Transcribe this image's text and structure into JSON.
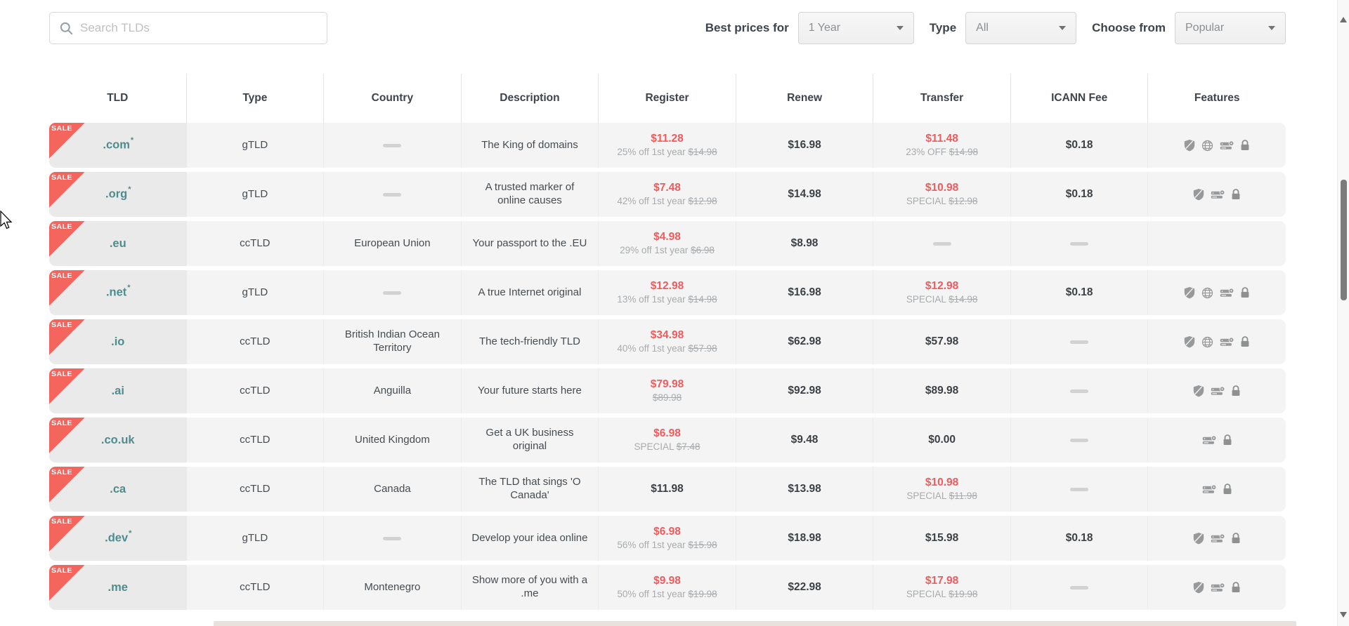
{
  "toolbar": {
    "search_placeholder": "Search TLDs",
    "best_prices_label": "Best prices for",
    "best_prices_value": "1 Year",
    "type_label": "Type",
    "type_value": "All",
    "choose_label": "Choose from",
    "choose_value": "Popular"
  },
  "colors": {
    "sale_badge": "#f4655e",
    "tld_teal": "#4e8c8e",
    "price_red": "#f25b5c",
    "row_bg": "#f4f4f4",
    "tld_cell_bg": "#eaeaea"
  },
  "table": {
    "headers": [
      "TLD",
      "Type",
      "Country",
      "Description",
      "Register",
      "Renew",
      "Transfer",
      "ICANN Fee",
      "Features"
    ],
    "sale_badge_label": "SALE",
    "rows": [
      {
        "tld": ".com",
        "asterisk": true,
        "sale": true,
        "type": "gTLD",
        "country": null,
        "description": "The King of domains",
        "register": {
          "price": "$11.28",
          "red": true,
          "note": "25% off 1st year",
          "strike": "$14.98"
        },
        "renew": "$16.98",
        "transfer": {
          "price": "$11.48",
          "red": true,
          "note": "23% OFF",
          "strike": "$14.98"
        },
        "icann": "$0.18",
        "features": [
          "shield",
          "globe",
          "server",
          "lock"
        ]
      },
      {
        "tld": ".org",
        "asterisk": true,
        "sale": true,
        "type": "gTLD",
        "country": null,
        "description": "A trusted marker of online causes",
        "register": {
          "price": "$7.48",
          "red": true,
          "note": "42% off 1st year",
          "strike": "$12.98"
        },
        "renew": "$14.98",
        "transfer": {
          "price": "$10.98",
          "red": true,
          "note": "SPECIAL",
          "strike": "$12.98"
        },
        "icann": "$0.18",
        "features": [
          "shield",
          "server",
          "lock"
        ]
      },
      {
        "tld": ".eu",
        "asterisk": false,
        "sale": true,
        "type": "ccTLD",
        "country": "European Union",
        "description": "Your passport to the .EU",
        "register": {
          "price": "$4.98",
          "red": true,
          "note": "29% off 1st year",
          "strike": "$6.98"
        },
        "renew": "$8.98",
        "transfer": null,
        "icann": null,
        "features": []
      },
      {
        "tld": ".net",
        "asterisk": true,
        "sale": true,
        "type": "gTLD",
        "country": null,
        "description": "A true Internet original",
        "register": {
          "price": "$12.98",
          "red": true,
          "note": "13% off 1st year",
          "strike": "$14.98"
        },
        "renew": "$16.98",
        "transfer": {
          "price": "$12.98",
          "red": true,
          "note": "SPECIAL",
          "strike": "$14.98"
        },
        "icann": "$0.18",
        "features": [
          "shield",
          "globe",
          "server",
          "lock"
        ]
      },
      {
        "tld": ".io",
        "asterisk": false,
        "sale": true,
        "type": "ccTLD",
        "country": "British Indian Ocean Territory",
        "description": "The tech-friendly TLD",
        "register": {
          "price": "$34.98",
          "red": true,
          "note": "40% off 1st year",
          "strike": "$57.98"
        },
        "renew": "$62.98",
        "transfer": {
          "price": "$57.98",
          "red": false
        },
        "icann": null,
        "features": [
          "shield",
          "globe",
          "server",
          "lock"
        ]
      },
      {
        "tld": ".ai",
        "asterisk": false,
        "sale": true,
        "type": "ccTLD",
        "country": "Anguilla",
        "description": "Your future starts here",
        "register": {
          "price": "$79.98",
          "red": true,
          "note": "",
          "strike": "$89.98"
        },
        "renew": "$92.98",
        "transfer": {
          "price": "$89.98",
          "red": false
        },
        "icann": null,
        "features": [
          "shield",
          "server",
          "lock"
        ]
      },
      {
        "tld": ".co.uk",
        "asterisk": false,
        "sale": true,
        "type": "ccTLD",
        "country": "United Kingdom",
        "description": "Get a UK business original",
        "register": {
          "price": "$6.98",
          "red": true,
          "note": "SPECIAL",
          "strike": "$7.48"
        },
        "renew": "$9.48",
        "transfer": {
          "price": "$0.00",
          "red": false
        },
        "icann": null,
        "features": [
          "server",
          "lock"
        ]
      },
      {
        "tld": ".ca",
        "asterisk": false,
        "sale": true,
        "type": "ccTLD",
        "country": "Canada",
        "description": "The TLD that sings 'O Canada'",
        "register": {
          "price": "$11.98",
          "red": false
        },
        "renew": "$13.98",
        "transfer": {
          "price": "$10.98",
          "red": true,
          "note": "SPECIAL",
          "strike": "$11.98"
        },
        "icann": null,
        "features": [
          "server",
          "lock"
        ]
      },
      {
        "tld": ".dev",
        "asterisk": true,
        "sale": true,
        "type": "gTLD",
        "country": null,
        "description": "Develop your idea online",
        "register": {
          "price": "$6.98",
          "red": true,
          "note": "56% off 1st year",
          "strike": "$15.98"
        },
        "renew": "$18.98",
        "transfer": {
          "price": "$15.98",
          "red": false
        },
        "icann": "$0.18",
        "features": [
          "shield",
          "server",
          "lock"
        ]
      },
      {
        "tld": ".me",
        "asterisk": false,
        "sale": true,
        "type": "ccTLD",
        "country": "Montenegro",
        "description": "Show more of you with a .me",
        "register": {
          "price": "$9.98",
          "red": true,
          "note": "50% off 1st year",
          "strike": "$19.98"
        },
        "renew": "$22.98",
        "transfer": {
          "price": "$17.98",
          "red": true,
          "note": "SPECIAL",
          "strike": "$19.98"
        },
        "icann": null,
        "features": [
          "shield",
          "server",
          "lock"
        ]
      }
    ]
  }
}
